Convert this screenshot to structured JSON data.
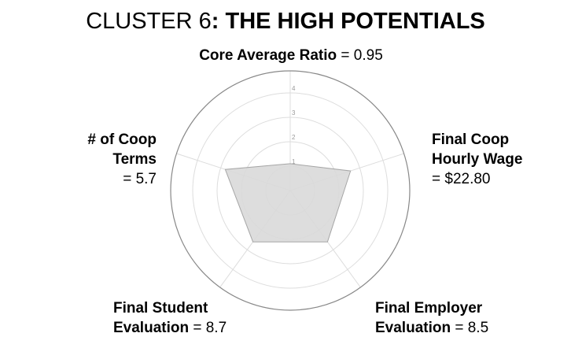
{
  "chart_data": {
    "type": "radar",
    "title_prefix": "CLUSTER 6",
    "title_bold": ": THE HIGH POTENTIALS",
    "rmax": 4,
    "ticks": [
      "1",
      "2",
      "3",
      "4"
    ],
    "axes": [
      {
        "name": "Core Average Ratio",
        "value_text": " = 0.95",
        "r": 1.1
      },
      {
        "name": "Final Coop Hourly Wage",
        "value_text": "= $22.80",
        "r": 2.6
      },
      {
        "name": "Final Employer Evaluation",
        "value_text": " = 8.5",
        "r": 2.6
      },
      {
        "name": "Final Student Evaluation",
        "value_text": " = 8.7",
        "r": 2.6
      },
      {
        "name": "# of Coop Terms",
        "value_text": "= 5.7",
        "r": 2.8
      }
    ],
    "colors": {
      "fill": "#d9d9d9",
      "stroke": "#a6a6a6",
      "grid": "#dddddd",
      "outer": "#888888"
    }
  },
  "labels": {
    "top": {
      "name": "Core Average Ratio",
      "value": " = 0.95"
    },
    "right": {
      "line1": "Final Coop",
      "line2": "Hourly Wage",
      "line3": "= $22.80"
    },
    "bottom_right": {
      "line1": "Final Employer",
      "line2": "Evaluation",
      "value": " = 8.5"
    },
    "bottom_left": {
      "line1": "Final Student",
      "line2": "Evaluation",
      "value": " = 8.7"
    },
    "left": {
      "line1": "# of Coop",
      "line2": "Terms",
      "line3": "= 5.7"
    }
  }
}
